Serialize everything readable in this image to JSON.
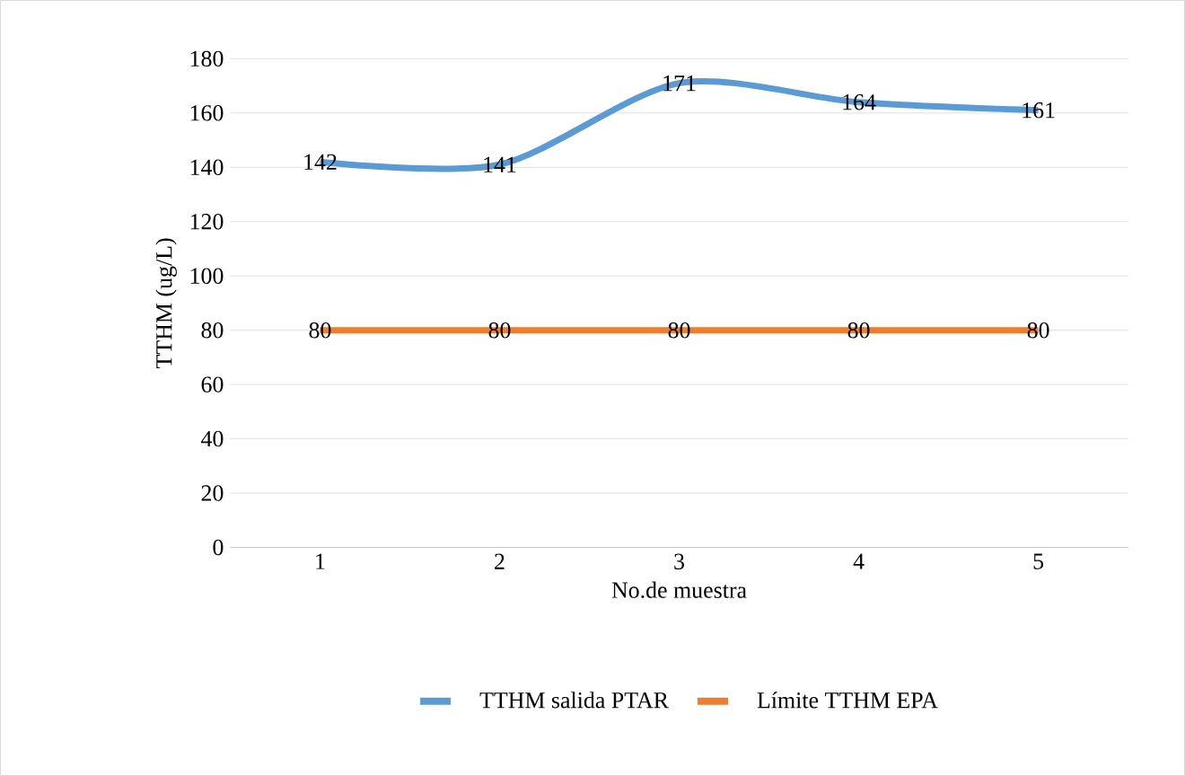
{
  "chart_data": {
    "type": "line",
    "xlabel": "No.de muestra",
    "ylabel": "TTHM (ug/L)",
    "categories": [
      "1",
      "2",
      "3",
      "4",
      "5"
    ],
    "series": [
      {
        "name": "TTHM salida PTAR",
        "color": "#5b9bd5",
        "values": [
          142,
          141,
          171,
          164,
          161
        ]
      },
      {
        "name": "Límite TTHM EPA",
        "color": "#ed7d31",
        "values": [
          80,
          80,
          80,
          80,
          80
        ]
      }
    ],
    "ylim": [
      0,
      180
    ],
    "yticks": [
      0,
      20,
      40,
      60,
      80,
      100,
      120,
      140,
      160,
      180
    ],
    "grid": "y",
    "legend": "bottom",
    "data_labels": true,
    "marker": "none",
    "line_style": "solid"
  }
}
